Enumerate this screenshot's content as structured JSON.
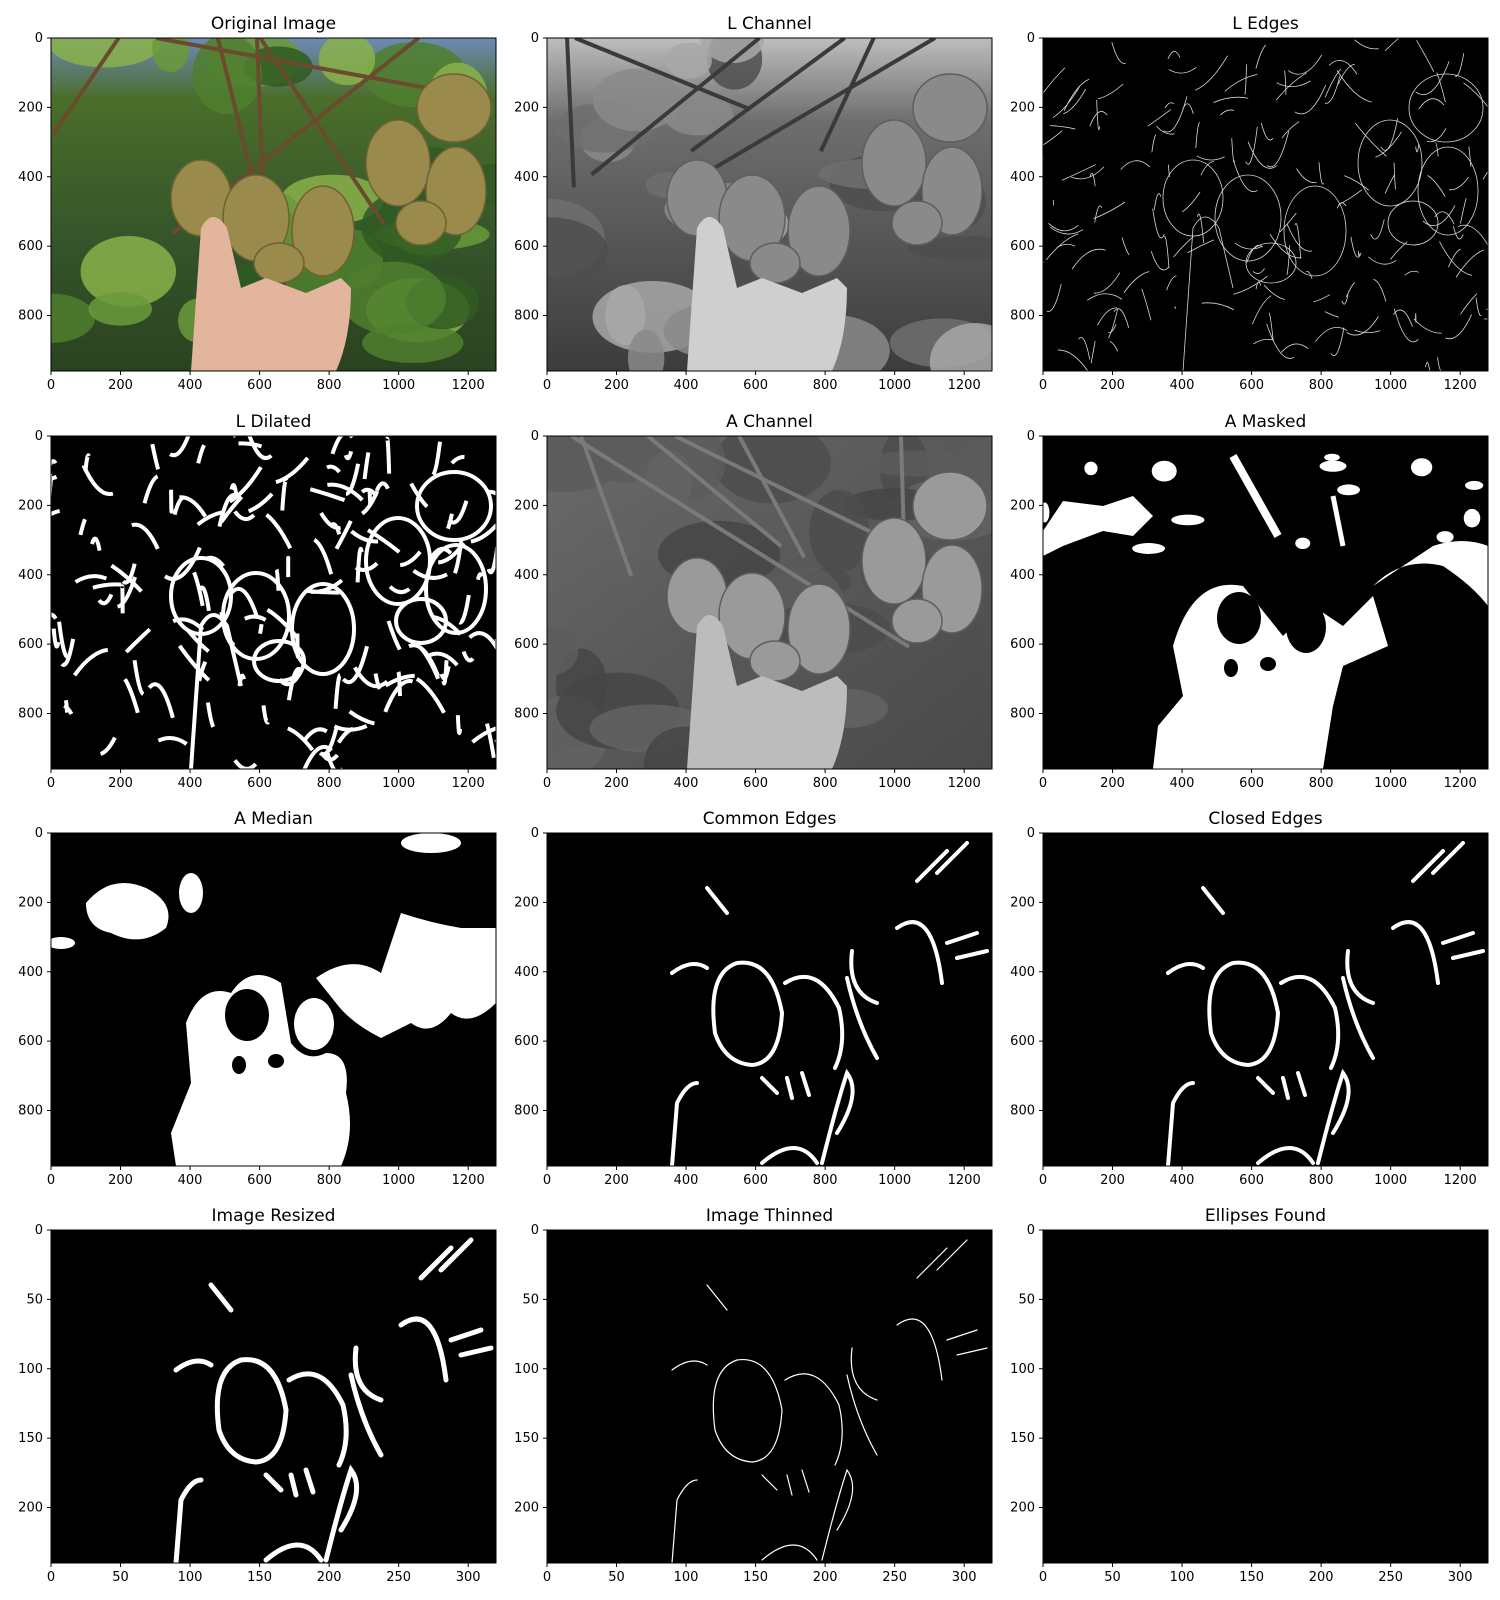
{
  "figure": {
    "panels": [
      {
        "title": "Original Image",
        "kind": "photo"
      },
      {
        "title": "L Channel",
        "kind": "photo-gray"
      },
      {
        "title": "L Edges",
        "kind": "edges-thin"
      },
      {
        "title": "L Dilated",
        "kind": "edges-thick"
      },
      {
        "title": "A Channel",
        "kind": "gray-channel"
      },
      {
        "title": "A Masked",
        "kind": "mask"
      },
      {
        "title": "A Median",
        "kind": "mask-smooth"
      },
      {
        "title": "Common Edges",
        "kind": "edges-common"
      },
      {
        "title": "Closed Edges",
        "kind": "edges-common"
      },
      {
        "title": "Image Resized",
        "kind": "edges-resized"
      },
      {
        "title": "Image Thinned",
        "kind": "edges-thinned"
      },
      {
        "title": "Ellipses Found",
        "kind": "blank"
      }
    ]
  },
  "chart_data": [
    {
      "type": "image",
      "title": "Original Image",
      "xticks": [
        "0",
        "200",
        "400",
        "600",
        "800",
        "1000",
        "1200"
      ],
      "yticks": [
        "0",
        "200",
        "400",
        "600",
        "800"
      ],
      "xlim": [
        0,
        1280
      ],
      "ylim": [
        960,
        0
      ]
    },
    {
      "type": "image",
      "title": "L Channel",
      "xticks": [
        "0",
        "200",
        "400",
        "600",
        "800",
        "1000",
        "1200"
      ],
      "yticks": [
        "0",
        "200",
        "400",
        "600",
        "800"
      ],
      "xlim": [
        0,
        1280
      ],
      "ylim": [
        960,
        0
      ]
    },
    {
      "type": "image",
      "title": "L Edges",
      "xticks": [
        "0",
        "200",
        "400",
        "600",
        "800",
        "1000",
        "1200"
      ],
      "yticks": [
        "0",
        "200",
        "400",
        "600",
        "800"
      ],
      "xlim": [
        0,
        1280
      ],
      "ylim": [
        960,
        0
      ]
    },
    {
      "type": "image",
      "title": "L Dilated",
      "xticks": [
        "0",
        "200",
        "400",
        "600",
        "800",
        "1000",
        "1200"
      ],
      "yticks": [
        "0",
        "200",
        "400",
        "600",
        "800"
      ],
      "xlim": [
        0,
        1280
      ],
      "ylim": [
        960,
        0
      ]
    },
    {
      "type": "image",
      "title": "A Channel",
      "xticks": [
        "0",
        "200",
        "400",
        "600",
        "800",
        "1000",
        "1200"
      ],
      "yticks": [
        "0",
        "200",
        "400",
        "600",
        "800"
      ],
      "xlim": [
        0,
        1280
      ],
      "ylim": [
        960,
        0
      ]
    },
    {
      "type": "image",
      "title": "A Masked",
      "xticks": [
        "0",
        "200",
        "400",
        "600",
        "800",
        "1000",
        "1200"
      ],
      "yticks": [
        "0",
        "200",
        "400",
        "600",
        "800"
      ],
      "xlim": [
        0,
        1280
      ],
      "ylim": [
        960,
        0
      ]
    },
    {
      "type": "image",
      "title": "A Median",
      "xticks": [
        "0",
        "200",
        "400",
        "600",
        "800",
        "1000",
        "1200"
      ],
      "yticks": [
        "0",
        "200",
        "400",
        "600",
        "800"
      ],
      "xlim": [
        0,
        1280
      ],
      "ylim": [
        960,
        0
      ]
    },
    {
      "type": "image",
      "title": "Common Edges",
      "xticks": [
        "0",
        "200",
        "400",
        "600",
        "800",
        "1000",
        "1200"
      ],
      "yticks": [
        "0",
        "200",
        "400",
        "600",
        "800"
      ],
      "xlim": [
        0,
        1280
      ],
      "ylim": [
        960,
        0
      ]
    },
    {
      "type": "image",
      "title": "Closed Edges",
      "xticks": [
        "0",
        "200",
        "400",
        "600",
        "800",
        "1000",
        "1200"
      ],
      "yticks": [
        "0",
        "200",
        "400",
        "600",
        "800"
      ],
      "xlim": [
        0,
        1280
      ],
      "ylim": [
        960,
        0
      ]
    },
    {
      "type": "image",
      "title": "Image Resized",
      "xticks": [
        "0",
        "50",
        "100",
        "150",
        "200",
        "250",
        "300"
      ],
      "yticks": [
        "0",
        "50",
        "100",
        "150",
        "200"
      ],
      "xlim": [
        0,
        320
      ],
      "ylim": [
        240,
        0
      ]
    },
    {
      "type": "image",
      "title": "Image Thinned",
      "xticks": [
        "0",
        "50",
        "100",
        "150",
        "200",
        "250",
        "300"
      ],
      "yticks": [
        "0",
        "50",
        "100",
        "150",
        "200"
      ],
      "xlim": [
        0,
        320
      ],
      "ylim": [
        240,
        0
      ]
    },
    {
      "type": "image",
      "title": "Ellipses Found",
      "xticks": [
        "0",
        "50",
        "100",
        "150",
        "200",
        "250",
        "300"
      ],
      "yticks": [
        "0",
        "50",
        "100",
        "150",
        "200"
      ],
      "xlim": [
        0,
        320
      ],
      "ylim": [
        240,
        0
      ]
    }
  ]
}
